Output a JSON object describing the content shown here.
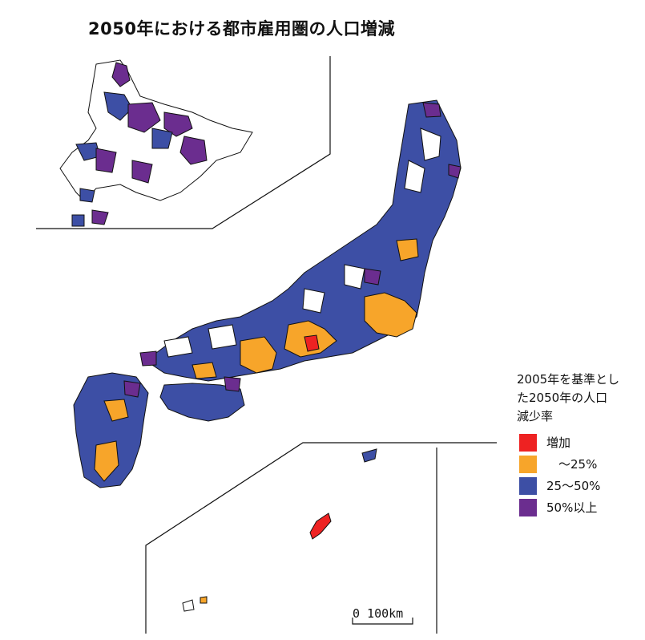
{
  "title": "2050年における都市雇用圏の人口増減",
  "legend": {
    "title_lines": [
      "2005年を基準とし",
      "た2050年の人口",
      "減少率"
    ],
    "items": [
      {
        "label": "増加",
        "color": "#ee2222"
      },
      {
        "label": "　～25%",
        "color": "#f7a52a"
      },
      {
        "label": "25～50%",
        "color": "#3d4fa5"
      },
      {
        "label": "50%以上",
        "color": "#6b2d8f"
      }
    ]
  },
  "scale": {
    "label": "0 100km"
  },
  "colors": {
    "increase": "#ee2222",
    "decrease_lt25": "#f7a52a",
    "decrease_25_50": "#3d4fa5",
    "decrease_ge50": "#6b2d8f",
    "outline": "#111111"
  }
}
